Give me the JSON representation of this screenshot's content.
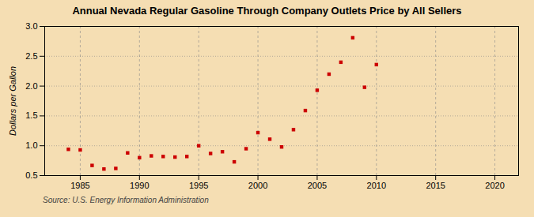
{
  "chart_data": {
    "type": "scatter",
    "title": "Annual Nevada Regular Gasoline Through Company Outlets Price by All Sellers",
    "ylabel": "Dollars per Gallon",
    "source": "Source: U.S. Energy Information Administration",
    "x": [
      1984,
      1985,
      1986,
      1987,
      1988,
      1989,
      1990,
      1991,
      1992,
      1993,
      1994,
      1995,
      1996,
      1997,
      1998,
      1999,
      2000,
      2001,
      2002,
      2003,
      2004,
      2005,
      2006,
      2007,
      2008,
      2009,
      2010
    ],
    "values": [
      0.94,
      0.93,
      0.67,
      0.61,
      0.62,
      0.88,
      0.8,
      0.83,
      0.82,
      0.81,
      0.82,
      1.0,
      0.87,
      0.9,
      0.73,
      0.95,
      1.22,
      1.11,
      0.98,
      1.27,
      1.59,
      1.93,
      2.2,
      2.4,
      2.81,
      1.98,
      2.36
    ],
    "color": "#cc0000",
    "marker": "square",
    "xlim": [
      1982,
      2022
    ],
    "ylim": [
      0.5,
      3.0
    ],
    "xticks": [
      1985,
      1990,
      1995,
      2000,
      2005,
      2010,
      2015,
      2020
    ],
    "yticks": [
      0.5,
      {
        "value": 1,
        "label": "1.0"
      },
      1.5,
      {
        "value": 2,
        "label": "2.0"
      },
      2.5,
      {
        "value": 3,
        "label": "3.0"
      }
    ],
    "grid": true
  }
}
